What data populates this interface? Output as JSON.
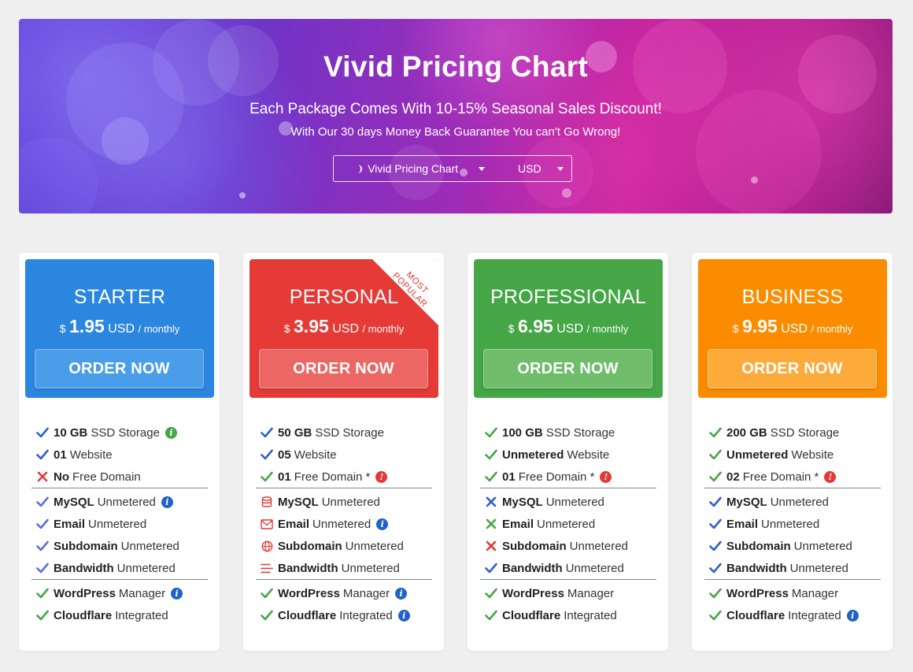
{
  "hero": {
    "title": "Vivid Pricing Chart",
    "subtitle": "Each Package Comes With 10-15% Seasonal Sales Discount!",
    "tagline": "With Our 30 days Money Back Guarantee You can't Go Wrong!",
    "theme_select": "Vivid Pricing Chart",
    "currency_select": "USD"
  },
  "colors": {
    "starter": "#2b86e0",
    "personal": "#e53a36",
    "professional": "#45a646",
    "business": "#fb8c00",
    "check_blue": "#2e5fd1",
    "check_green": "#45a646",
    "cross_red": "#e53935",
    "info_blue": "#1e63c9",
    "info_green": "#45a646",
    "info_red": "#e53935"
  },
  "plans": [
    {
      "name": "STARTER",
      "currency_symbol": "$",
      "price": "1.95",
      "currency": "USD",
      "period": "/ monthly",
      "button": "ORDER NOW",
      "ribbon": "",
      "features": [
        {
          "bold": "10 GB",
          "text": "SSD Storage",
          "icon": "check-icon",
          "color": "#2e5fd1",
          "info": "green"
        },
        {
          "bold": "01",
          "text": "Website",
          "icon": "check-icon",
          "color": "#2e5fd1",
          "info": ""
        },
        {
          "bold": "No",
          "text": "Free Domain",
          "icon": "cross-icon",
          "color": "#e53935",
          "info": ""
        },
        {
          "bold": "MySQL",
          "text": "Unmetered",
          "icon": "check-icon",
          "color": "#5b6ee0",
          "info": "blue"
        },
        {
          "bold": "Email",
          "text": "Unmetered",
          "icon": "check-icon",
          "color": "#5b6ee0",
          "info": ""
        },
        {
          "bold": "Subdomain",
          "text": "Unmetered",
          "icon": "check-icon",
          "color": "#5b6ee0",
          "info": ""
        },
        {
          "bold": "Bandwidth",
          "text": "Unmetered",
          "icon": "check-icon",
          "color": "#5b6ee0",
          "info": ""
        },
        {
          "bold": "WordPress",
          "text": "Manager",
          "icon": "check-icon",
          "color": "#45a646",
          "info": "blue"
        },
        {
          "bold": "Cloudflare",
          "text": "Integrated",
          "icon": "check-icon",
          "color": "#45a646",
          "info": ""
        }
      ]
    },
    {
      "name": "PERSONAL",
      "currency_symbol": "$",
      "price": "3.95",
      "currency": "USD",
      "period": "/ monthly",
      "button": "ORDER NOW",
      "ribbon": "MOST POPULAR",
      "features": [
        {
          "bold": "50 GB",
          "text": "SSD Storage",
          "icon": "check-icon",
          "color": "#2e5fd1",
          "info": ""
        },
        {
          "bold": "05",
          "text": "Website",
          "icon": "check-icon",
          "color": "#2e5fd1",
          "info": ""
        },
        {
          "bold": "01",
          "text": "Free Domain *",
          "icon": "check-icon",
          "color": "#45a646",
          "info": "red"
        },
        {
          "bold": "MySQL",
          "text": "Unmetered",
          "icon": "database-icon",
          "color": "#e53935",
          "info": ""
        },
        {
          "bold": "Email",
          "text": "Unmetered",
          "icon": "envelope-icon",
          "color": "#e53935",
          "info": "blue"
        },
        {
          "bold": "Subdomain",
          "text": "Unmetered",
          "icon": "globe-icon",
          "color": "#e53935",
          "info": ""
        },
        {
          "bold": "Bandwidth",
          "text": "Unmetered",
          "icon": "bars-icon",
          "color": "#e53935",
          "info": ""
        },
        {
          "bold": "WordPress",
          "text": "Manager",
          "icon": "check-icon",
          "color": "#45a646",
          "info": "blue"
        },
        {
          "bold": "Cloudflare",
          "text": "Integrated",
          "icon": "check-icon",
          "color": "#45a646",
          "info": "blue"
        }
      ]
    },
    {
      "name": "PROFESSIONAL",
      "currency_symbol": "$",
      "price": "6.95",
      "currency": "USD",
      "period": "/ monthly",
      "button": "ORDER NOW",
      "ribbon": "",
      "features": [
        {
          "bold": "100 GB",
          "text": "SSD Storage",
          "icon": "check-icon",
          "color": "#45a646",
          "info": ""
        },
        {
          "bold": "Unmetered",
          "text": "Website",
          "icon": "check-icon",
          "color": "#45a646",
          "info": ""
        },
        {
          "bold": "01",
          "text": "Free Domain *",
          "icon": "check-icon",
          "color": "#45a646",
          "info": "red"
        },
        {
          "bold": "MySQL",
          "text": "Unmetered",
          "icon": "cross-icon",
          "color": "#2e5fd1",
          "info": ""
        },
        {
          "bold": "Email",
          "text": "Unmetered",
          "icon": "cross-icon",
          "color": "#45a646",
          "info": ""
        },
        {
          "bold": "Subdomain",
          "text": "Unmetered",
          "icon": "cross-icon",
          "color": "#e53935",
          "info": ""
        },
        {
          "bold": "Bandwidth",
          "text": "Unmetered",
          "icon": "check-icon",
          "color": "#2e5fd1",
          "info": ""
        },
        {
          "bold": "WordPress",
          "text": "Manager",
          "icon": "check-icon",
          "color": "#45a646",
          "info": ""
        },
        {
          "bold": "Cloudflare",
          "text": "Integrated",
          "icon": "check-icon",
          "color": "#45a646",
          "info": ""
        }
      ]
    },
    {
      "name": "BUSINESS",
      "currency_symbol": "$",
      "price": "9.95",
      "currency": "USD",
      "period": "/ monthly",
      "button": "ORDER NOW",
      "ribbon": "",
      "features": [
        {
          "bold": "200 GB",
          "text": "SSD Storage",
          "icon": "check-icon",
          "color": "#45a646",
          "info": ""
        },
        {
          "bold": "Unmetered",
          "text": "Website",
          "icon": "check-icon",
          "color": "#45a646",
          "info": ""
        },
        {
          "bold": "02",
          "text": "Free Domain *",
          "icon": "check-icon",
          "color": "#45a646",
          "info": "red"
        },
        {
          "bold": "MySQL",
          "text": "Unmetered",
          "icon": "check-icon",
          "color": "#2e5fd1",
          "info": ""
        },
        {
          "bold": "Email",
          "text": "Unmetered",
          "icon": "check-icon",
          "color": "#2e5fd1",
          "info": ""
        },
        {
          "bold": "Subdomain",
          "text": "Unmetered",
          "icon": "check-icon",
          "color": "#2e5fd1",
          "info": ""
        },
        {
          "bold": "Bandwidth",
          "text": "Unmetered",
          "icon": "check-icon",
          "color": "#2e5fd1",
          "info": ""
        },
        {
          "bold": "WordPress",
          "text": "Manager",
          "icon": "check-icon",
          "color": "#45a646",
          "info": ""
        },
        {
          "bold": "Cloudflare",
          "text": "Integrated",
          "icon": "check-icon",
          "color": "#45a646",
          "info": "blue"
        }
      ]
    }
  ]
}
